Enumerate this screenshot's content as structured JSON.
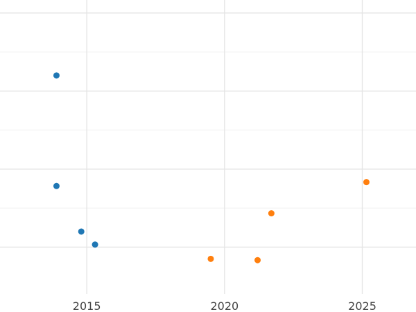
{
  "chart_data": {
    "type": "scatter",
    "title": "",
    "xlabel": "",
    "ylabel": "",
    "xlim": [
      2011.85,
      2026.95
    ],
    "ylim": [
      -0.8,
      10.5
    ],
    "x_major_ticks": [
      2015,
      2020,
      2025
    ],
    "x_tick_labels": [
      "2015",
      "2020",
      "2025"
    ],
    "y_major_gridlines": [
      1.0,
      4.0,
      7.0,
      10.0
    ],
    "y_minor_gridlines": [
      2.5,
      5.5,
      8.5
    ],
    "grid": true,
    "legend": "none",
    "series": [
      {
        "color": "#1f77b4",
        "points": [
          {
            "x": 2013.9,
            "y": 7.6
          },
          {
            "x": 2013.9,
            "y": 3.35
          },
          {
            "x": 2014.8,
            "y": 1.6
          },
          {
            "x": 2015.3,
            "y": 1.1
          }
        ]
      },
      {
        "color": "#ff7f0e",
        "points": [
          {
            "x": 2019.5,
            "y": 0.55
          },
          {
            "x": 2021.2,
            "y": 0.5
          },
          {
            "x": 2021.7,
            "y": 2.3
          },
          {
            "x": 2025.15,
            "y": 3.5
          }
        ]
      }
    ]
  }
}
